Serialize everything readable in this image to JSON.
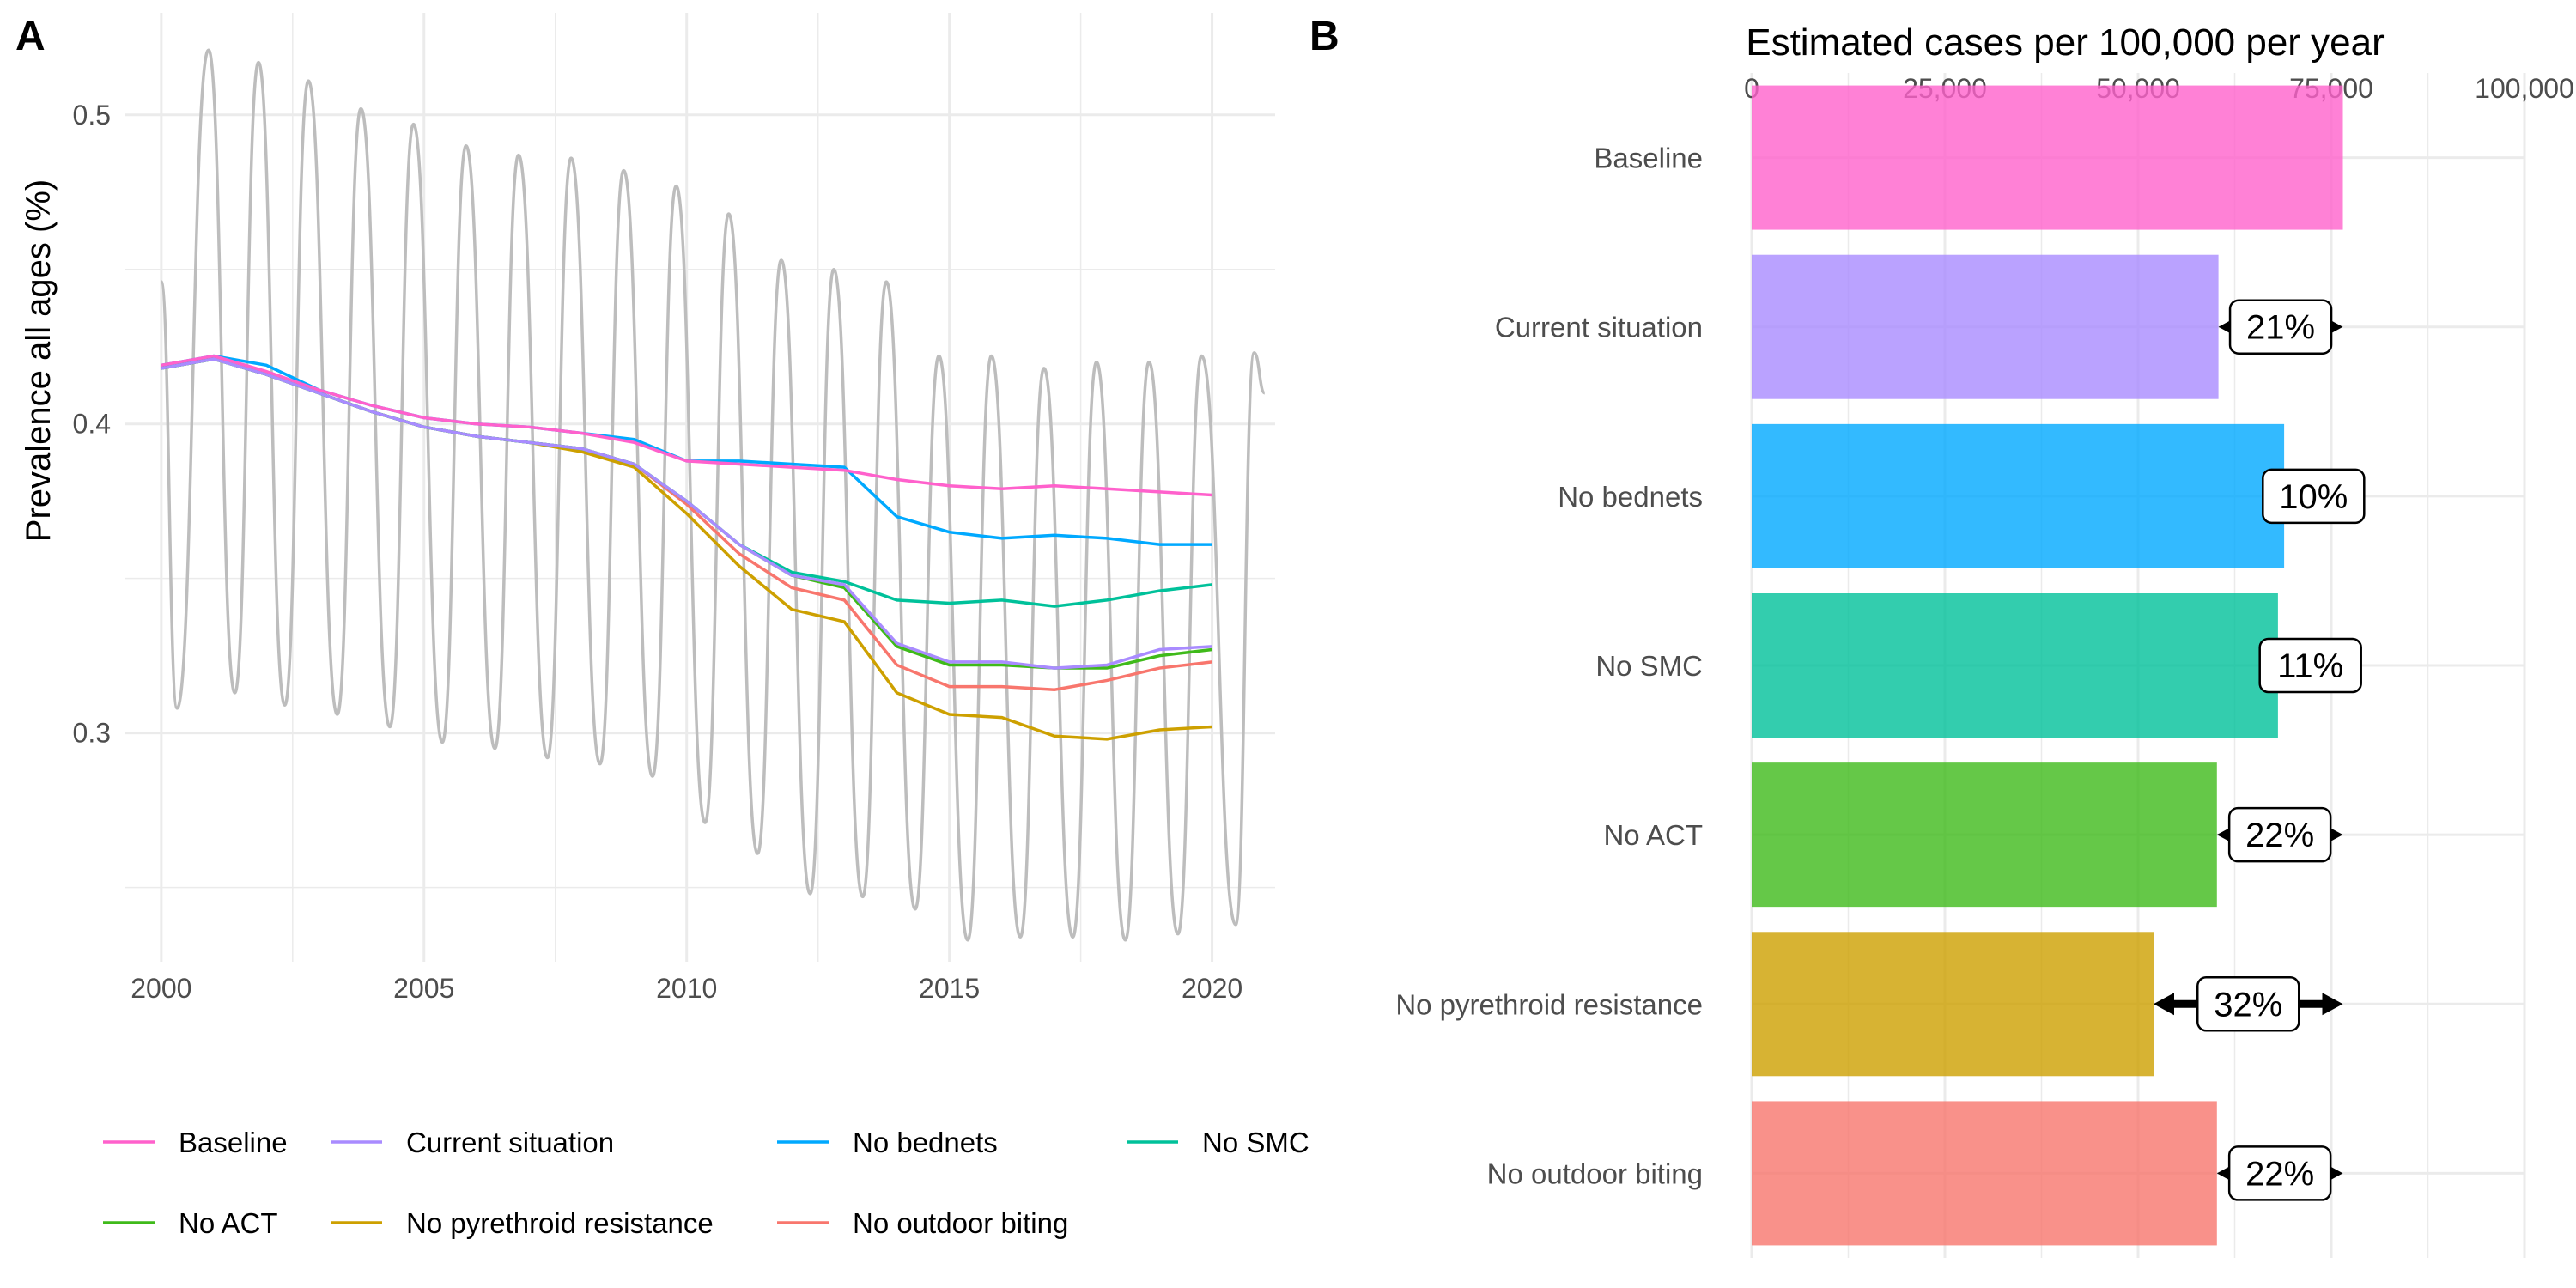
{
  "panels": {
    "a_label": "A",
    "b_label": "B"
  },
  "colors": {
    "Baseline": "#FF61CC",
    "Current situation": "#A98BFF",
    "No bednets": "#00A9FF",
    "No SMC": "#00C19A",
    "No ACT": "#3FBA1A",
    "No pyrethroid resistance": "#CDA000",
    "No outdoor biting": "#F8766D",
    "seasonal": "#bdbdbd",
    "grid": "#ebebeb",
    "axis_text": "#4d4d4d"
  },
  "chart_data": [
    {
      "type": "line",
      "title": "",
      "xlabel": "",
      "ylabel": "Prevalence all ages (%)",
      "xlim": [
        1999.3,
        2021.2
      ],
      "ylim": [
        0.226,
        0.533
      ],
      "x_ticks": [
        2000,
        2005,
        2010,
        2015,
        2020
      ],
      "y_ticks": [
        0.3,
        0.4,
        0.5
      ],
      "y_tick_labels": [
        "0.3",
        "0.4",
        "0.5"
      ],
      "grid": true,
      "legend_position": "bottom",
      "x": [
        2000,
        2001,
        2002,
        2003,
        2004,
        2005,
        2006,
        2007,
        2008,
        2009,
        2010,
        2011,
        2012,
        2013,
        2014,
        2015,
        2016,
        2017,
        2018,
        2019,
        2020
      ],
      "series": [
        {
          "name": "Baseline",
          "values": [
            0.419,
            0.422,
            0.417,
            0.411,
            0.406,
            0.402,
            0.4,
            0.399,
            0.397,
            0.394,
            0.388,
            0.387,
            0.386,
            0.385,
            0.382,
            0.38,
            0.379,
            0.38,
            0.379,
            0.378,
            0.377
          ]
        },
        {
          "name": "Current situation",
          "values": [
            0.418,
            0.421,
            0.416,
            0.41,
            0.404,
            0.399,
            0.396,
            0.394,
            0.392,
            0.387,
            0.375,
            0.361,
            0.351,
            0.348,
            0.329,
            0.323,
            0.323,
            0.321,
            0.322,
            0.327,
            0.328
          ]
        },
        {
          "name": "No bednets",
          "values": [
            0.419,
            0.422,
            0.419,
            0.411,
            0.406,
            0.402,
            0.4,
            0.399,
            0.397,
            0.395,
            0.388,
            0.388,
            0.387,
            0.386,
            0.37,
            0.365,
            0.363,
            0.364,
            0.363,
            0.361,
            0.361
          ]
        },
        {
          "name": "No SMC",
          "values": [
            0.418,
            0.421,
            0.416,
            0.41,
            0.404,
            0.399,
            0.396,
            0.394,
            0.392,
            0.387,
            0.375,
            0.361,
            0.352,
            0.349,
            0.343,
            0.342,
            0.343,
            0.341,
            0.343,
            0.346,
            0.348
          ]
        },
        {
          "name": "No ACT",
          "values": [
            0.418,
            0.421,
            0.416,
            0.41,
            0.404,
            0.399,
            0.396,
            0.394,
            0.392,
            0.387,
            0.375,
            0.361,
            0.351,
            0.347,
            0.328,
            0.322,
            0.322,
            0.321,
            0.321,
            0.325,
            0.327
          ]
        },
        {
          "name": "No pyrethroid resistance",
          "values": [
            0.418,
            0.421,
            0.416,
            0.41,
            0.404,
            0.399,
            0.396,
            0.394,
            0.391,
            0.386,
            0.371,
            0.354,
            0.34,
            0.336,
            0.313,
            0.306,
            0.305,
            0.299,
            0.298,
            0.301,
            0.302
          ]
        },
        {
          "name": "No outdoor biting",
          "values": [
            0.418,
            0.421,
            0.416,
            0.41,
            0.404,
            0.399,
            0.396,
            0.394,
            0.392,
            0.387,
            0.374,
            0.358,
            0.347,
            0.343,
            0.322,
            0.315,
            0.315,
            0.314,
            0.317,
            0.321,
            0.323
          ]
        }
      ],
      "seasonal_series": {
        "peaks": [
          [
            2000.9,
            0.521
          ],
          [
            2001.85,
            0.517
          ],
          [
            2002.8,
            0.511
          ],
          [
            2003.8,
            0.502
          ],
          [
            2004.8,
            0.497
          ],
          [
            2005.8,
            0.49
          ],
          [
            2006.8,
            0.487
          ],
          [
            2007.8,
            0.486
          ],
          [
            2008.8,
            0.482
          ],
          [
            2009.8,
            0.477
          ],
          [
            2010.8,
            0.468
          ],
          [
            2011.8,
            0.453
          ],
          [
            2012.8,
            0.45
          ],
          [
            2013.8,
            0.446
          ],
          [
            2014.8,
            0.422
          ],
          [
            2015.8,
            0.422
          ],
          [
            2016.8,
            0.418
          ],
          [
            2017.8,
            0.42
          ],
          [
            2018.8,
            0.42
          ],
          [
            2019.8,
            0.422
          ],
          [
            2020.8,
            0.423
          ]
        ],
        "troughs": [
          [
            2000.3,
            0.308
          ],
          [
            2001.4,
            0.313
          ],
          [
            2002.35,
            0.309
          ],
          [
            2003.35,
            0.306
          ],
          [
            2004.35,
            0.302
          ],
          [
            2005.35,
            0.297
          ],
          [
            2006.35,
            0.295
          ],
          [
            2007.35,
            0.292
          ],
          [
            2008.35,
            0.29
          ],
          [
            2009.35,
            0.286
          ],
          [
            2010.35,
            0.271
          ],
          [
            2011.35,
            0.261
          ],
          [
            2012.35,
            0.248
          ],
          [
            2013.35,
            0.247
          ],
          [
            2014.35,
            0.243
          ],
          [
            2015.35,
            0.233
          ],
          [
            2016.35,
            0.234
          ],
          [
            2017.35,
            0.234
          ],
          [
            2018.35,
            0.233
          ],
          [
            2019.35,
            0.235
          ],
          [
            2020.45,
            0.238
          ]
        ],
        "start": [
          2000.0,
          0.446
        ],
        "end": [
          2021.0,
          0.41
        ]
      }
    },
    {
      "type": "bar",
      "orientation": "horizontal",
      "title": "Estimated cases per 100,000 per year",
      "xlabel": "Estimated cases per 100,000 per year",
      "xlim": [
        0,
        100000
      ],
      "x_ticks": [
        0,
        25000,
        50000,
        75000,
        100000
      ],
      "x_tick_labels": [
        "0",
        "25,000",
        "50,000",
        "75,000",
        "100,000"
      ],
      "axis_position": "top",
      "grid": true,
      "baseline_value": 76500,
      "categories": [
        "Baseline",
        "Current situation",
        "No bednets",
        "No SMC",
        "No ACT",
        "No pyrethroid resistance",
        "No outdoor biting"
      ],
      "values": [
        76500,
        60400,
        68900,
        68100,
        60200,
        52000,
        60200
      ],
      "data_labels": [
        "",
        "21%",
        "10%",
        "11%",
        "22%",
        "32%",
        "22%"
      ]
    }
  ]
}
